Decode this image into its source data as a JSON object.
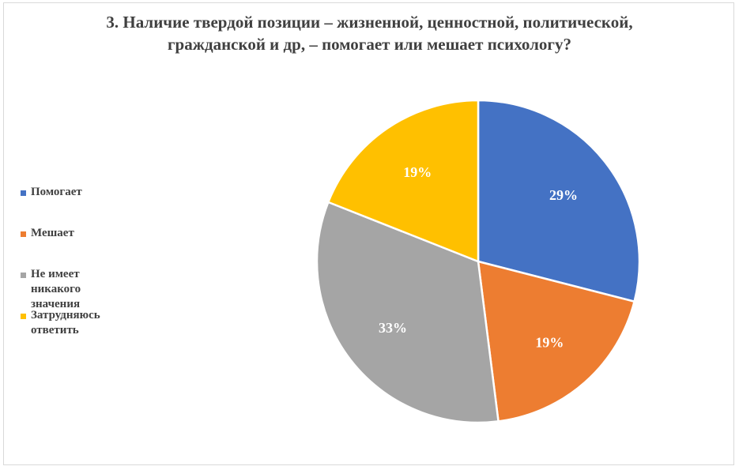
{
  "chart_data": {
    "type": "pie",
    "title_lines": [
      "3. Наличие твердой позиции – жизненной, ценностной, политической,",
      "гражданской и др, – помогает или мешает психологу?"
    ],
    "categories": [
      "Помогает",
      "Мешает",
      "Не имеет никакого значения",
      "Затрудняюсь\nответить"
    ],
    "values": [
      29,
      19,
      33,
      19
    ],
    "labels": [
      "29%",
      "19%",
      "33%",
      "19%"
    ],
    "colors": [
      "#4472C4",
      "#ED7D31",
      "#A5A5A5",
      "#FFC000"
    ],
    "legend_position": "left"
  }
}
